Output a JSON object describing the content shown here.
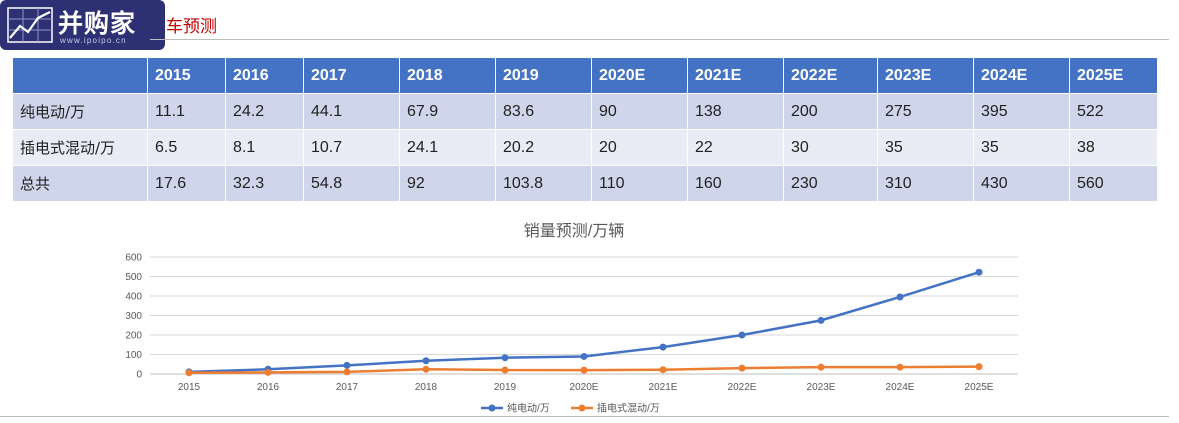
{
  "header": {
    "logo_text": "并购家",
    "logo_url": "www.ipoipo.cn",
    "title_fragment": "车预测"
  },
  "table": {
    "columns": [
      "",
      "2015",
      "2016",
      "2017",
      "2018",
      "2019",
      "2020E",
      "2021E",
      "2022E",
      "2023E",
      "2024E",
      "2025E"
    ],
    "rows": [
      {
        "label": "纯电动/万",
        "values": [
          "11.1",
          "24.2",
          "44.1",
          "67.9",
          "83.6",
          "90",
          "138",
          "200",
          "275",
          "395",
          "522"
        ]
      },
      {
        "label": "插电式混动/万",
        "values": [
          "6.5",
          "8.1",
          "10.7",
          "24.1",
          "20.2",
          "20",
          "22",
          "30",
          "35",
          "35",
          "38"
        ]
      },
      {
        "label": "总共",
        "values": [
          "17.6",
          "32.3",
          "54.8",
          "92",
          "103.8",
          "110",
          "160",
          "230",
          "310",
          "430",
          "560"
        ]
      }
    ]
  },
  "chart_data": {
    "type": "line",
    "title": "销量预测/万辆",
    "categories": [
      "2015",
      "2016",
      "2017",
      "2018",
      "2019",
      "2020E",
      "2021E",
      "2022E",
      "2023E",
      "2024E",
      "2025E"
    ],
    "series": [
      {
        "name": "纯电动/万",
        "color": "#4472c4",
        "values": [
          11.1,
          24.2,
          44.1,
          67.9,
          83.6,
          90,
          138,
          200,
          275,
          395,
          522
        ]
      },
      {
        "name": "插电式混动/万",
        "color": "#ed7d31",
        "values": [
          6.5,
          8.1,
          10.7,
          24.1,
          20.2,
          20,
          22,
          30,
          35,
          35,
          38
        ]
      }
    ],
    "ylim": [
      0,
      600
    ],
    "yticks": [
      0,
      100,
      200,
      300,
      400,
      500,
      600
    ],
    "grid": true,
    "legend": "bottom"
  }
}
